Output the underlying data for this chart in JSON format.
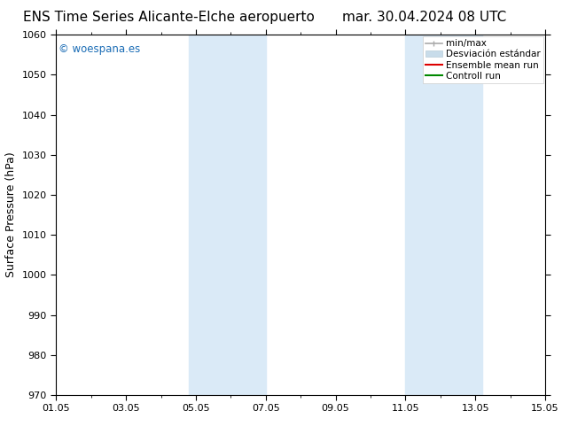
{
  "title_left": "ENS Time Series Alicante-Elche aeropuerto",
  "title_right": "mar. 30.04.2024 08 UTC",
  "ylabel": "Surface Pressure (hPa)",
  "ylim": [
    970,
    1060
  ],
  "yticks": [
    970,
    980,
    990,
    1000,
    1010,
    1020,
    1030,
    1040,
    1050,
    1060
  ],
  "xtick_positions": [
    0,
    2,
    4,
    6,
    8,
    10,
    12,
    14
  ],
  "xtick_labels": [
    "01.05",
    "03.05",
    "05.05",
    "07.05",
    "09.05",
    "11.05",
    "13.05",
    "15.05"
  ],
  "shade_bands": [
    {
      "x_start": 3.8,
      "x_end": 6.0
    },
    {
      "x_start": 10.0,
      "x_end": 12.2
    }
  ],
  "shade_color": "#daeaf7",
  "background_color": "#ffffff",
  "copyright_text": "© woespana.es",
  "copyright_color": "#1a6cb5",
  "legend_minmax_color": "#aaaaaa",
  "legend_desv_color": "#c8dcea",
  "legend_ens_color": "#dd0000",
  "legend_ctrl_color": "#008800",
  "title_fontsize": 11,
  "label_fontsize": 9,
  "tick_fontsize": 8,
  "legend_fontsize": 7.5,
  "copyright_fontsize": 8.5
}
